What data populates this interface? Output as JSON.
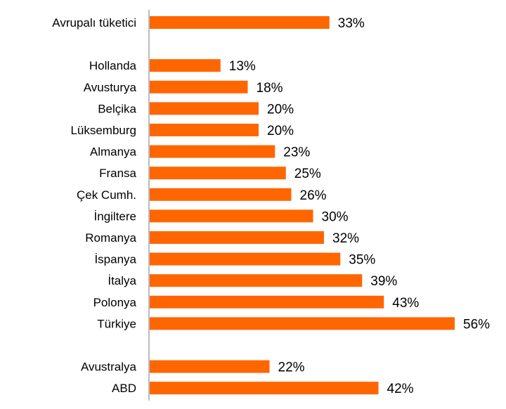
{
  "chart_data": {
    "type": "bar",
    "orientation": "horizontal",
    "categories": [
      "Avrupalı tüketici",
      "Hollanda",
      "Avusturya",
      "Belçika",
      "Lüksemburg",
      "Almanya",
      "Fransa",
      "Çek Cumh.",
      "İngiltere",
      "Romanya",
      "İspanya",
      "İtalya",
      "Polonya",
      "Türkiye",
      "Avustralya",
      "ABD"
    ],
    "values": [
      33,
      13,
      18,
      20,
      20,
      23,
      25,
      26,
      30,
      32,
      35,
      39,
      43,
      56,
      22,
      42
    ],
    "value_labels": [
      "33%",
      "13%",
      "18%",
      "20%",
      "20%",
      "23%",
      "25%",
      "26%",
      "30%",
      "32%",
      "35%",
      "39%",
      "43%",
      "56%",
      "22%",
      "42%"
    ],
    "groups": [
      [
        0
      ],
      [
        1,
        2,
        3,
        4,
        5,
        6,
        7,
        8,
        9,
        10,
        11,
        12,
        13
      ],
      [
        14,
        15
      ]
    ],
    "unit": "%",
    "xlim": [
      0,
      56
    ],
    "grid": false,
    "legend": "none",
    "bar_color": "#FF6600",
    "axis_color": "#A6A6A6"
  }
}
